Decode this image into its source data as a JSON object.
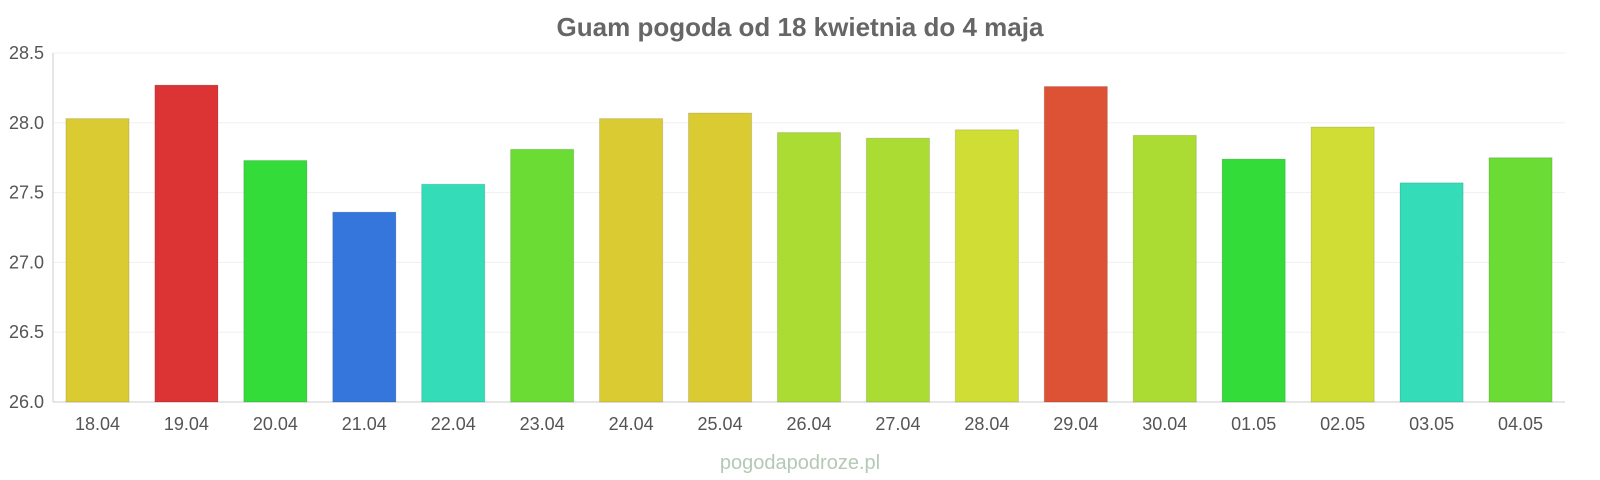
{
  "watermark": "pogodapodroze.pl",
  "chart_data": {
    "type": "bar",
    "title": "Guam pogoda od 18 kwietnia do 4 maja",
    "xlabel": "",
    "ylabel": "",
    "categories": [
      "18.04",
      "19.04",
      "20.04",
      "21.04",
      "22.04",
      "23.04",
      "24.04",
      "25.04",
      "26.04",
      "27.04",
      "28.04",
      "29.04",
      "30.04",
      "01.05",
      "02.05",
      "03.05",
      "04.05"
    ],
    "values": [
      28.03,
      28.27,
      27.73,
      27.36,
      27.56,
      27.81,
      28.03,
      28.07,
      27.93,
      27.89,
      27.95,
      28.26,
      27.91,
      27.74,
      27.97,
      27.57,
      27.75
    ],
    "colors": [
      "#dbcb33",
      "#dc3434",
      "#33dc39",
      "#3476dc",
      "#34dcb7",
      "#6bdc34",
      "#dbcb33",
      "#dbcb33",
      "#aadc34",
      "#aadc34",
      "#cfdd35",
      "#dd5234",
      "#aadc34",
      "#33dc39",
      "#cfdd35",
      "#34dcb7",
      "#6bdc34"
    ],
    "ylim": [
      26.0,
      28.5
    ],
    "yticks": [
      "26.0",
      "26.5",
      "27.0",
      "27.5",
      "28.0",
      "28.5"
    ],
    "grid": true,
    "legend": "none"
  }
}
